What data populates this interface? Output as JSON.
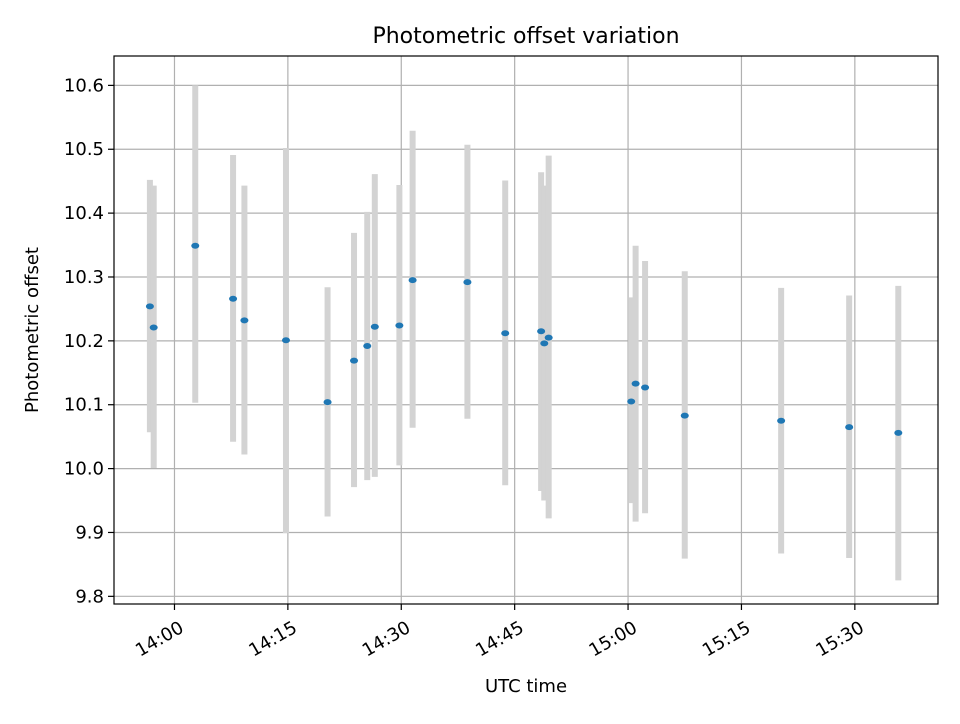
{
  "chart_data": {
    "type": "scatter",
    "title": "Photometric offset variation",
    "xlabel": "UTC time",
    "ylabel": "Photometric offset",
    "x_unit": "UTC",
    "xlim": [
      "13:52",
      "15:41"
    ],
    "ylim": [
      9.788,
      10.646
    ],
    "xticks": [
      "14:00",
      "14:15",
      "14:30",
      "14:45",
      "15:00",
      "15:15",
      "15:30"
    ],
    "yticks": [
      "9.8",
      "9.9",
      "10.0",
      "10.1",
      "10.2",
      "10.3",
      "10.4",
      "10.5",
      "10.6"
    ],
    "grid": true,
    "colors": {
      "point": "#1f77b4",
      "errorbar": "#d3d3d3",
      "grid": "#b0b0b0"
    },
    "series": [
      {
        "points": [
          {
            "x": "13:56:45",
            "y": 10.254,
            "ylow": 10.057,
            "yhigh": 10.452
          },
          {
            "x": "13:57:15",
            "y": 10.221,
            "ylow": 10.001,
            "yhigh": 10.443
          },
          {
            "x": "14:02:45",
            "y": 10.349,
            "ylow": 10.103,
            "yhigh": 10.6
          },
          {
            "x": "14:07:45",
            "y": 10.266,
            "ylow": 10.042,
            "yhigh": 10.491
          },
          {
            "x": "14:09:15",
            "y": 10.232,
            "ylow": 10.022,
            "yhigh": 10.443
          },
          {
            "x": "14:14:45",
            "y": 10.201,
            "ylow": 9.899,
            "yhigh": 10.502
          },
          {
            "x": "14:20:15",
            "y": 10.104,
            "ylow": 9.925,
            "yhigh": 10.284
          },
          {
            "x": "14:23:45",
            "y": 10.169,
            "ylow": 9.971,
            "yhigh": 10.369
          },
          {
            "x": "14:25:30",
            "y": 10.192,
            "ylow": 9.982,
            "yhigh": 10.402
          },
          {
            "x": "14:26:30",
            "y": 10.222,
            "ylow": 9.987,
            "yhigh": 10.461
          },
          {
            "x": "14:29:45",
            "y": 10.224,
            "ylow": 10.005,
            "yhigh": 10.444
          },
          {
            "x": "14:31:30",
            "y": 10.295,
            "ylow": 10.064,
            "yhigh": 10.529
          },
          {
            "x": "14:38:45",
            "y": 10.292,
            "ylow": 10.078,
            "yhigh": 10.507
          },
          {
            "x": "14:43:45",
            "y": 10.212,
            "ylow": 9.974,
            "yhigh": 10.451
          },
          {
            "x": "14:48:30",
            "y": 10.215,
            "ylow": 9.965,
            "yhigh": 10.464
          },
          {
            "x": "14:48:55",
            "y": 10.196,
            "ylow": 9.95,
            "yhigh": 10.443
          },
          {
            "x": "14:49:30",
            "y": 10.205,
            "ylow": 9.922,
            "yhigh": 10.49
          },
          {
            "x": "15:00:25",
            "y": 10.105,
            "ylow": 9.946,
            "yhigh": 10.268
          },
          {
            "x": "15:01:00",
            "y": 10.133,
            "ylow": 9.917,
            "yhigh": 10.349
          },
          {
            "x": "15:02:15",
            "y": 10.127,
            "ylow": 9.93,
            "yhigh": 10.325
          },
          {
            "x": "15:07:30",
            "y": 10.083,
            "ylow": 9.859,
            "yhigh": 10.309
          },
          {
            "x": "15:20:15",
            "y": 10.075,
            "ylow": 9.867,
            "yhigh": 10.283
          },
          {
            "x": "15:29:15",
            "y": 10.065,
            "ylow": 9.86,
            "yhigh": 10.271
          },
          {
            "x": "15:35:45",
            "y": 10.056,
            "ylow": 9.825,
            "yhigh": 10.286
          }
        ]
      }
    ]
  }
}
